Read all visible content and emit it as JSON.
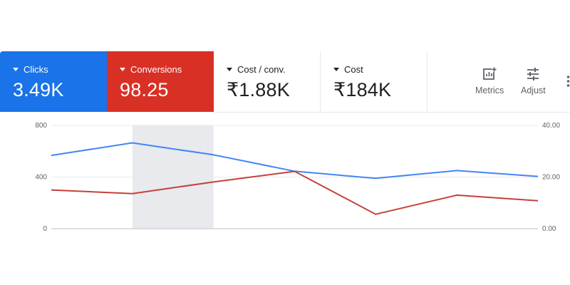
{
  "metrics": {
    "clicks": {
      "label": "Clicks",
      "value": "3.49K",
      "color": "#1a73e8"
    },
    "conversions": {
      "label": "Conversions",
      "value": "98.25",
      "color": "#d93025"
    },
    "cost_per_conv": {
      "label": "Cost / conv.",
      "value": "₹1.88K"
    },
    "cost": {
      "label": "Cost",
      "value": "₹184K"
    }
  },
  "toolbar": {
    "metrics_label": "Metrics",
    "metrics_icon": "add-chart-icon",
    "adjust_label": "Adjust",
    "adjust_icon": "sliders-icon",
    "more_icon": "more-vert-icon"
  },
  "chart_data": {
    "type": "line",
    "x": [
      0,
      1,
      2,
      3,
      4,
      5,
      6
    ],
    "series": [
      {
        "name": "Clicks",
        "color": "#4285f4",
        "axis": "left",
        "values": [
          568,
          665,
          572,
          445,
          390,
          450,
          405
        ]
      },
      {
        "name": "Conversions",
        "color": "#c5413a",
        "axis": "right",
        "values": [
          15.0,
          13.6,
          18.1,
          22.2,
          5.6,
          13.0,
          10.8
        ]
      }
    ],
    "left_axis": {
      "ticks": [
        "800",
        "400",
        "0"
      ],
      "range": [
        0,
        800
      ]
    },
    "right_axis": {
      "ticks": [
        "40.00",
        "20.00",
        "0.00"
      ],
      "range": [
        0,
        40
      ]
    },
    "highlight_index": 1,
    "highlight_color": "#e8eaed",
    "grid": true
  }
}
